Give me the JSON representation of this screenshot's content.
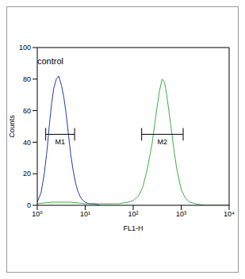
{
  "chart_data": {
    "type": "line",
    "log": "x",
    "x_label": "FL1-H",
    "y_label": "Counts",
    "xlim": [
      1,
      10000
    ],
    "xticks": [
      {
        "value": 1,
        "label": "10⁰"
      },
      {
        "value": 10,
        "label": "10¹"
      },
      {
        "value": 100,
        "label": "10²"
      },
      {
        "value": 1000,
        "label": "10³"
      },
      {
        "value": 10000,
        "label": "10⁴"
      }
    ],
    "ylim": [
      0,
      100
    ],
    "yticks": [
      0,
      20,
      40,
      60,
      80,
      100
    ],
    "series": [
      {
        "color": "#1f3f9f",
        "x": [
          1,
          1.2,
          1.4,
          1.6,
          1.8,
          2,
          2.2,
          2.5,
          2.8,
          3.2,
          3.6,
          4,
          4.5,
          5,
          5.6,
          6.3,
          7,
          8,
          9,
          10,
          12,
          15,
          20
        ],
        "values": [
          2,
          8,
          20,
          35,
          52,
          65,
          74,
          80,
          82,
          76,
          68,
          58,
          44,
          32,
          22,
          14,
          9,
          5,
          3,
          2,
          1,
          1,
          0
        ]
      },
      {
        "color": "#3cb043",
        "x": [
          1,
          2,
          5,
          10,
          20,
          50,
          80,
          100,
          130,
          160,
          200,
          250,
          300,
          350,
          400,
          450,
          500,
          600,
          700,
          800,
          1000,
          1200,
          1500,
          2000,
          3000,
          10000
        ],
        "values": [
          1,
          2,
          2,
          1,
          1,
          1,
          2,
          3,
          6,
          12,
          24,
          40,
          58,
          72,
          80,
          78,
          70,
          52,
          36,
          24,
          10,
          5,
          2,
          1,
          0,
          0
        ]
      }
    ],
    "annotations": [
      {
        "text": "control"
      },
      {
        "text": "M1",
        "x_range": [
          1.5,
          6
        ],
        "y": 45
      },
      {
        "text": "M2",
        "x_range": [
          150,
          1100
        ],
        "y": 45
      }
    ]
  }
}
